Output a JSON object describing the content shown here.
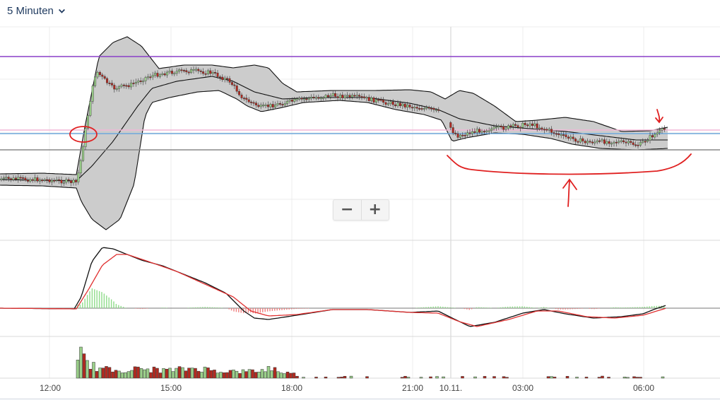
{
  "toolbar": {
    "timeframe_label": "5 Minuten"
  },
  "zoom": {
    "minus_label": "−",
    "plus_label": "+"
  },
  "colors": {
    "up_candle": "#9bd08a",
    "down_candle": "#b32a20",
    "band_fill": "#cccccc",
    "band_line": "#111111",
    "hline_purple": "#8a3fc8",
    "hline_pink": "#f2b6d6",
    "hline_blue": "#6fa8dc",
    "hline_gray": "#888888",
    "annotation_red": "#e02020",
    "macd_line": "#111111",
    "signal_line": "#e03030"
  },
  "chart_data": {
    "type": "candlestick",
    "x_ticks": [
      "12:00",
      "15:00",
      "18:00",
      "21:00",
      "10.11.",
      "03:00",
      "06:00"
    ],
    "panels": [
      "price",
      "macd",
      "volume"
    ],
    "price_overlays": [
      "bollinger-bands",
      "moving-average"
    ],
    "annotations": [
      "red-circle",
      "red-arrow-down",
      "red-bracket",
      "red-arrow-up"
    ]
  }
}
